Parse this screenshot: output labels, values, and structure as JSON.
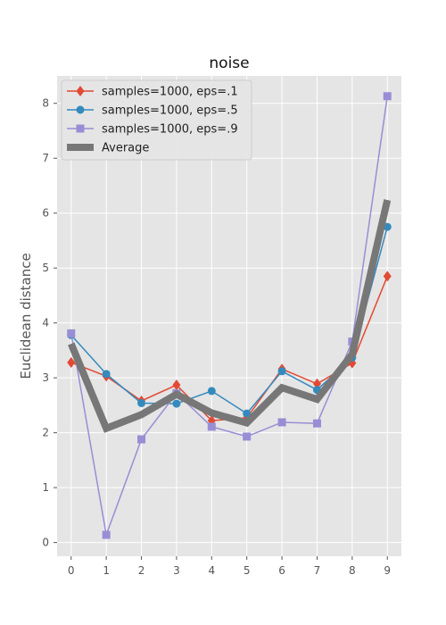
{
  "chart_data": {
    "type": "line",
    "title": "noise",
    "xlabel": "",
    "ylabel": "Euclidean distance",
    "x": [
      0,
      1,
      2,
      3,
      4,
      5,
      6,
      7,
      8,
      9
    ],
    "xlim": [
      -0.4,
      9.4
    ],
    "ylim": [
      -0.25,
      8.5
    ],
    "xticks": [
      0,
      1,
      2,
      3,
      4,
      5,
      6,
      7,
      8,
      9
    ],
    "yticks": [
      0,
      1,
      2,
      3,
      4,
      5,
      6,
      7,
      8
    ],
    "grid": true,
    "legend_position": "top-left",
    "series": [
      {
        "name": "samples=1000, eps=.1",
        "color": "#E24A33",
        "marker": "diamond",
        "values": [
          3.28,
          3.03,
          2.58,
          2.87,
          2.22,
          2.27,
          3.16,
          2.89,
          3.27,
          4.85
        ]
      },
      {
        "name": "samples=1000, eps=.5",
        "color": "#348ABD",
        "marker": "circle",
        "values": [
          3.78,
          3.07,
          2.54,
          2.53,
          2.76,
          2.35,
          3.12,
          2.78,
          3.37,
          5.75
        ]
      },
      {
        "name": "samples=1000, eps=.9",
        "color": "#988ED5",
        "marker": "square",
        "values": [
          3.81,
          0.14,
          1.88,
          2.72,
          2.11,
          1.93,
          2.19,
          2.17,
          3.66,
          8.13
        ]
      },
      {
        "name": "Average",
        "color": "#777777",
        "marker": "none",
        "values": [
          3.62,
          2.08,
          2.33,
          2.7,
          2.36,
          2.18,
          2.82,
          2.61,
          3.43,
          6.24
        ]
      }
    ]
  }
}
